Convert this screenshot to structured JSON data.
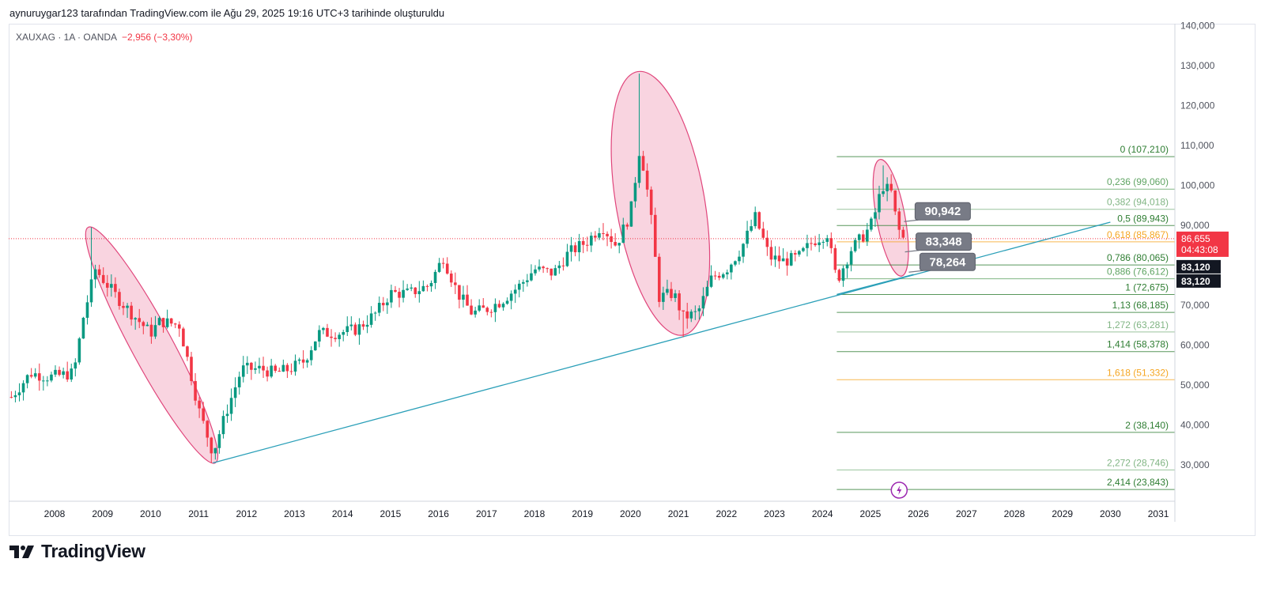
{
  "header": {
    "attribution": "aynuruygar123 tarafından TradingView.com ile Ağu 29, 2025 19:16 UTC+3 tarihinde oluşturuldu"
  },
  "legend": {
    "symbol": "XAUXAG · 1A · OANDA",
    "change": "−2,956 (−3,30%)"
  },
  "footer": {
    "brand": "TradingView"
  },
  "colors": {
    "up": "#089981",
    "down": "#f23645",
    "ellipse_fill": "#f7c6d6",
    "ellipse_stroke": "#e0457b",
    "trendline": "#2a9fb8",
    "fib_green": "#5fa463",
    "fib_orange": "#f5a623",
    "price_badge": "#f23645",
    "dark_badge": "#131722",
    "callout": "#787b86"
  },
  "chart_data": {
    "type": "candlestick",
    "title": "XAUXAG · 1A · OANDA",
    "x_ticks": [
      "2008",
      "2009",
      "2010",
      "2011",
      "2012",
      "2013",
      "2014",
      "2015",
      "2016",
      "2017",
      "2018",
      "2019",
      "2020",
      "2021",
      "2022",
      "2023",
      "2024",
      "2025",
      "2026",
      "2027",
      "2028",
      "2029",
      "2030",
      "2031"
    ],
    "y_ticks": [
      "30,000",
      "40,000",
      "50,000",
      "60,000",
      "70,000",
      "80,000",
      "90,000",
      "100,000",
      "110,000",
      "120,000",
      "130,000",
      "140,000"
    ],
    "ylim": [
      20,
      141
    ],
    "current_price": {
      "value": 86.655,
      "label": "86,655",
      "countdown": "04:43:08"
    },
    "extra_badges": [
      "83,120",
      "83,120"
    ],
    "anchors": [
      {
        "t": 2007.1,
        "v": 47
      },
      {
        "t": 2007.5,
        "v": 53
      },
      {
        "t": 2007.9,
        "v": 52
      },
      {
        "t": 2008.4,
        "v": 53
      },
      {
        "t": 2008.6,
        "v": 67
      },
      {
        "t": 2008.85,
        "v": 79
      },
      {
        "t": 2009.3,
        "v": 72
      },
      {
        "t": 2009.6,
        "v": 68
      },
      {
        "t": 2010.0,
        "v": 63
      },
      {
        "t": 2010.2,
        "v": 66
      },
      {
        "t": 2010.6,
        "v": 65
      },
      {
        "t": 2010.8,
        "v": 55
      },
      {
        "t": 2011.0,
        "v": 44
      },
      {
        "t": 2011.3,
        "v": 33
      },
      {
        "t": 2011.6,
        "v": 44
      },
      {
        "t": 2011.9,
        "v": 54
      },
      {
        "t": 2012.3,
        "v": 54
      },
      {
        "t": 2012.6,
        "v": 53
      },
      {
        "t": 2012.9,
        "v": 54
      },
      {
        "t": 2013.2,
        "v": 56
      },
      {
        "t": 2013.5,
        "v": 63
      },
      {
        "t": 2013.9,
        "v": 63
      },
      {
        "t": 2014.3,
        "v": 64
      },
      {
        "t": 2014.7,
        "v": 68
      },
      {
        "t": 2015.0,
        "v": 73
      },
      {
        "t": 2015.4,
        "v": 73
      },
      {
        "t": 2015.8,
        "v": 75
      },
      {
        "t": 2016.1,
        "v": 82
      },
      {
        "t": 2016.4,
        "v": 73
      },
      {
        "t": 2016.7,
        "v": 68
      },
      {
        "t": 2017.0,
        "v": 69
      },
      {
        "t": 2017.3,
        "v": 71
      },
      {
        "t": 2017.7,
        "v": 75
      },
      {
        "t": 2018.0,
        "v": 79
      },
      {
        "t": 2018.4,
        "v": 78
      },
      {
        "t": 2018.7,
        "v": 83
      },
      {
        "t": 2019.1,
        "v": 86
      },
      {
        "t": 2019.4,
        "v": 90
      },
      {
        "t": 2019.7,
        "v": 85
      },
      {
        "t": 2020.0,
        "v": 93
      },
      {
        "t": 2020.2,
        "v": 110
      },
      {
        "t": 2020.4,
        "v": 95
      },
      {
        "t": 2020.6,
        "v": 72
      },
      {
        "t": 2020.9,
        "v": 73
      },
      {
        "t": 2021.1,
        "v": 67
      },
      {
        "t": 2021.4,
        "v": 68
      },
      {
        "t": 2021.7,
        "v": 77
      },
      {
        "t": 2022.0,
        "v": 79
      },
      {
        "t": 2022.3,
        "v": 84
      },
      {
        "t": 2022.6,
        "v": 92
      },
      {
        "t": 2022.9,
        "v": 82
      },
      {
        "t": 2023.2,
        "v": 81
      },
      {
        "t": 2023.5,
        "v": 82
      },
      {
        "t": 2023.8,
        "v": 86
      },
      {
        "t": 2024.1,
        "v": 88
      },
      {
        "t": 2024.3,
        "v": 76
      },
      {
        "t": 2024.6,
        "v": 84
      },
      {
        "t": 2024.9,
        "v": 88
      },
      {
        "t": 2025.05,
        "v": 91
      },
      {
        "t": 2025.25,
        "v": 100
      },
      {
        "t": 2025.45,
        "v": 98
      },
      {
        "t": 2025.55,
        "v": 90
      },
      {
        "t": 2025.67,
        "v": 86.7
      }
    ],
    "wick_highs": [
      {
        "t": 2008.75,
        "v": 89.5
      },
      {
        "t": 2020.2,
        "v": 128
      },
      {
        "t": 2025.3,
        "v": 105
      }
    ],
    "wick_lows": [
      {
        "t": 2011.3,
        "v": 30.5
      },
      {
        "t": 2021.1,
        "v": 62
      }
    ],
    "fib_levels": [
      {
        "label": "0 (107,210)",
        "value": 107.21,
        "color": "#2e7d32"
      },
      {
        "label": "0,236 (99,060)",
        "value": 99.06,
        "color": "#5fa463"
      },
      {
        "label": "0,382 (94,018)",
        "value": 94.018,
        "color": "#81b584"
      },
      {
        "label": "0,5 (89,943)",
        "value": 89.943,
        "color": "#2e7d32"
      },
      {
        "label": "0,618 (85,867)",
        "value": 85.867,
        "color": "#f5a623"
      },
      {
        "label": "0,786 (80,065)",
        "value": 80.065,
        "color": "#2e7d32"
      },
      {
        "label": "0,886 (76,612)",
        "value": 76.612,
        "color": "#5fa463"
      },
      {
        "label": "1 (72,675)",
        "value": 72.675,
        "color": "#2e7d32"
      },
      {
        "label": "1,13 (68,185)",
        "value": 68.185,
        "color": "#2e7d32"
      },
      {
        "label": "1,272 (63,281)",
        "value": 63.281,
        "color": "#81b584"
      },
      {
        "label": "1,414 (58,378)",
        "value": 58.378,
        "color": "#2e7d32"
      },
      {
        "label": "1,618 (51,332)",
        "value": 51.332,
        "color": "#f5a623"
      },
      {
        "label": "2 (38,140)",
        "value": 38.14,
        "color": "#2e7d32"
      },
      {
        "label": "2,272 (28,746)",
        "value": 28.746,
        "color": "#81b584"
      },
      {
        "label": "2,414 (23,843)",
        "value": 23.843,
        "color": "#2e7d32"
      }
    ],
    "fib_start_year": 2024.3,
    "trendline": {
      "from": {
        "t": 2011.3,
        "v": 30.5
      },
      "to": {
        "t": 2030.0,
        "v": 90.8
      }
    },
    "support_line": {
      "from": {
        "t": 2024.3,
        "v": 72.7
      },
      "to": {
        "t": 2025.9,
        "v": 77.7
      }
    },
    "callouts": [
      {
        "label": "90,942",
        "t": 2025.7,
        "v": 90.942
      },
      {
        "label": "83,348",
        "t": 2025.72,
        "v": 83.348
      },
      {
        "label": "78,264",
        "t": 2025.8,
        "v": 78.264
      }
    ],
    "ellipses": [
      {
        "t1": 2008.7,
        "v1": 89.5,
        "t2": 2011.35,
        "v2": 30.5,
        "width": 26
      },
      {
        "t1": 2020.15,
        "v1": 128.5,
        "t2": 2021.1,
        "v2": 62.5,
        "width": 56
      },
      {
        "t1": 2025.2,
        "v1": 106.5,
        "t2": 2025.65,
        "v2": 77.3,
        "width": 18
      }
    ]
  }
}
